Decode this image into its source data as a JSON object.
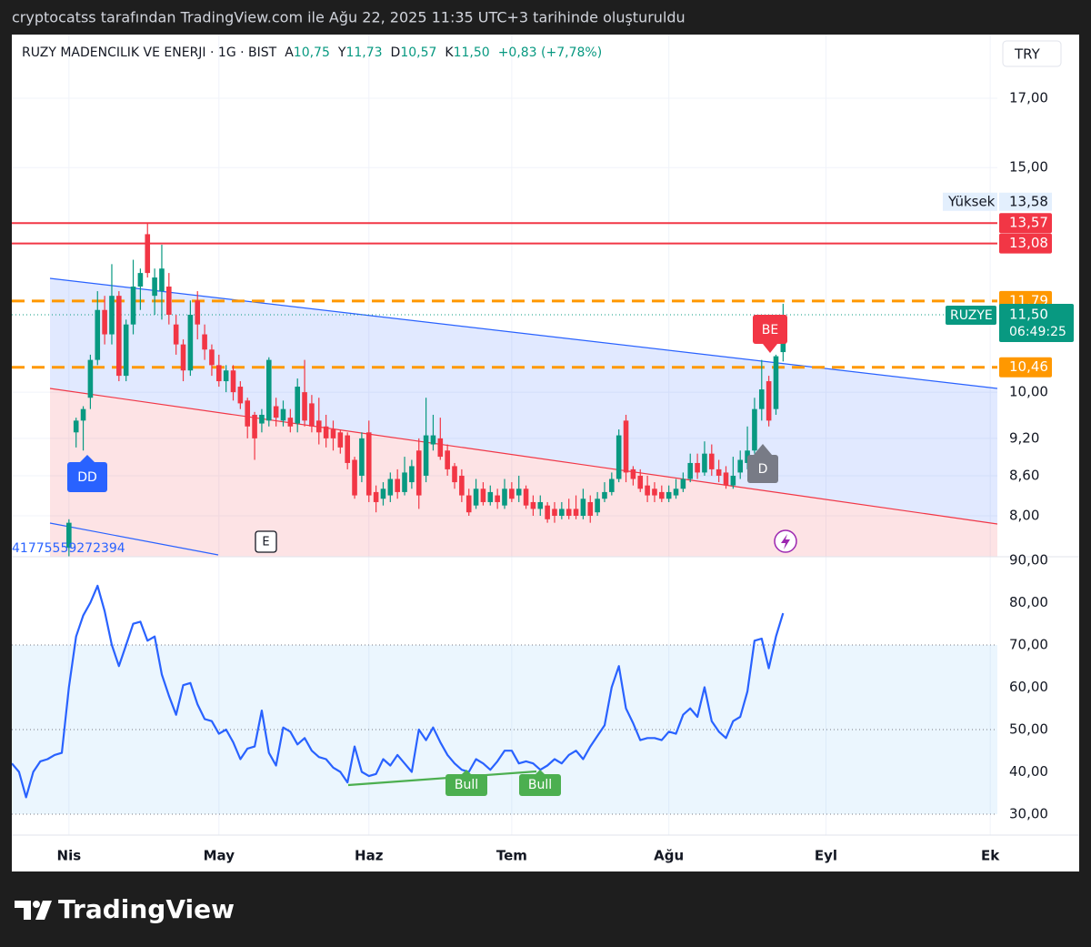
{
  "header": {
    "caption": "cryptocatss tarafından TradingView.com ile Ağu 22, 2025 11:35 UTC+3 tarihinde oluşturuldu"
  },
  "footer": {
    "brand": "TradingView"
  },
  "chart_data": {
    "type": "candlestick",
    "title": "RUZY MADENCILIK VE ENERJI · 1G · BIST",
    "legend": [
      {
        "key": "A",
        "label": "10,75"
      },
      {
        "key": "Y",
        "label": "11,73"
      },
      {
        "key": "D",
        "label": "10,57"
      },
      {
        "key": "K",
        "label": "11,50"
      }
    ],
    "change_label": "+0,83 (+7,78%)",
    "currency": "TRY",
    "up_color": "#089981",
    "down_color": "#f23645",
    "log_scale": true,
    "grid": true,
    "xlim": [
      0,
      138
    ],
    "xticks": [
      {
        "value": 8,
        "label": "Nis"
      },
      {
        "value": 29,
        "label": "May"
      },
      {
        "value": 50,
        "label": "Haz"
      },
      {
        "value": 70,
        "label": "Tem"
      },
      {
        "value": 92,
        "label": "Ağu"
      },
      {
        "value": 114,
        "label": "Eyl"
      },
      {
        "value": 137,
        "label": "Ek"
      }
    ],
    "ylim": [
      7.43,
      19.07
    ],
    "yticks": [
      {
        "value": 17,
        "label": "17,00"
      },
      {
        "value": 15,
        "label": "15,00"
      },
      {
        "value": 10,
        "label": "10,00"
      },
      {
        "value": 9.2,
        "label": "9,20"
      },
      {
        "value": 8.6,
        "label": "8,60"
      },
      {
        "value": 8,
        "label": "8,00"
      }
    ],
    "open": [
      null,
      null,
      null,
      null,
      null,
      null,
      null,
      null,
      7.55,
      9.3,
      9.5,
      9.9,
      10.6,
      11.6,
      11.1,
      11.9,
      10.3,
      11.3,
      12.1,
      13.3,
      11.9,
      12.0,
      12.1,
      11.3,
      10.9,
      10.4,
      11.8,
      11.1,
      10.8,
      10.5,
      10.2,
      10.4,
      10.1,
      9.85,
      9.6,
      9.45,
      9.5,
      9.75,
      9.5,
      9.55,
      9.45,
      10.0,
      9.8,
      9.5,
      9.4,
      9.35,
      9.3,
      9.25,
      8.85,
      8.6,
      9.3,
      8.35,
      8.25,
      8.3,
      8.55,
      8.35,
      8.5,
      9.0,
      8.6,
      9.1,
      9.2,
      9.0,
      8.75,
      8.6,
      8.3,
      8.15,
      8.4,
      8.2,
      8.3,
      8.15,
      8.4,
      8.3,
      8.4,
      8.2,
      8.1,
      8.15,
      8.1,
      8.0,
      8.1,
      8.1,
      8.0,
      8.2,
      8.05,
      8.25,
      8.35,
      8.55,
      9.5,
      8.7,
      8.6,
      8.45,
      8.4,
      8.35,
      8.25,
      8.3,
      8.4,
      8.55,
      8.8,
      8.65,
      8.95,
      8.7,
      8.65,
      8.45,
      8.65,
      8.8,
      9.0,
      9.7,
      10.2,
      9.7,
      10.75
    ],
    "high": [
      null,
      null,
      null,
      null,
      null,
      null,
      null,
      null,
      7.95,
      9.55,
      9.75,
      10.7,
      12.0,
      11.9,
      12.6,
      12.0,
      11.4,
      12.7,
      12.5,
      13.58,
      12.5,
      13.05,
      12.4,
      11.5,
      11.0,
      11.8,
      12.0,
      11.3,
      10.9,
      10.7,
      10.5,
      10.5,
      10.2,
      9.9,
      9.65,
      9.7,
      10.65,
      9.9,
      9.85,
      9.7,
      10.25,
      10.6,
      9.95,
      9.9,
      9.6,
      9.5,
      9.35,
      9.3,
      8.9,
      9.3,
      9.5,
      8.45,
      8.5,
      8.65,
      8.7,
      8.9,
      8.85,
      9.2,
      9.9,
      9.6,
      9.55,
      9.1,
      8.8,
      8.7,
      8.4,
      8.55,
      8.5,
      8.45,
      8.4,
      8.55,
      8.5,
      8.6,
      8.45,
      8.3,
      8.3,
      8.2,
      8.2,
      8.2,
      8.25,
      8.3,
      8.4,
      8.3,
      8.35,
      8.5,
      8.65,
      9.35,
      9.6,
      8.75,
      8.7,
      8.6,
      8.5,
      8.45,
      8.45,
      8.55,
      8.65,
      8.95,
      8.95,
      9.15,
      9.1,
      8.85,
      8.75,
      8.9,
      9.0,
      9.4,
      9.9,
      10.6,
      10.3,
      10.7,
      11.73
    ],
    "low": [
      null,
      null,
      null,
      null,
      null,
      null,
      null,
      null,
      7.4,
      9.05,
      9.0,
      9.7,
      10.5,
      10.9,
      10.9,
      10.2,
      10.2,
      11.1,
      11.6,
      12.3,
      11.5,
      11.4,
      11.3,
      10.7,
      10.2,
      10.3,
      11.0,
      10.6,
      10.3,
      10.1,
      10.0,
      9.85,
      9.7,
      9.2,
      8.85,
      9.3,
      9.4,
      9.4,
      9.4,
      9.3,
      9.3,
      9.4,
      9.3,
      9.1,
      9.05,
      9.0,
      8.95,
      8.7,
      8.25,
      8.5,
      8.2,
      8.05,
      8.15,
      8.2,
      8.25,
      8.3,
      8.4,
      8.1,
      8.5,
      9.0,
      8.85,
      8.6,
      8.4,
      8.2,
      8.0,
      8.1,
      8.15,
      8.15,
      8.1,
      8.1,
      8.2,
      8.2,
      8.1,
      8.0,
      8.0,
      7.9,
      7.9,
      7.95,
      7.95,
      7.95,
      7.95,
      7.9,
      8.0,
      8.2,
      8.3,
      8.5,
      8.5,
      8.45,
      8.35,
      8.2,
      8.2,
      8.2,
      8.2,
      8.25,
      8.35,
      8.5,
      8.55,
      8.6,
      8.6,
      8.5,
      8.4,
      8.4,
      8.55,
      8.7,
      8.95,
      9.5,
      9.4,
      9.6,
      10.57
    ],
    "close": [
      null,
      null,
      null,
      null,
      null,
      null,
      null,
      null,
      7.9,
      9.5,
      9.7,
      10.6,
      11.6,
      11.1,
      11.9,
      10.3,
      11.3,
      12.1,
      12.4,
      12.4,
      12.3,
      12.5,
      11.5,
      10.9,
      10.4,
      11.5,
      11.3,
      10.8,
      10.5,
      10.2,
      10.4,
      10.0,
      9.8,
      9.4,
      9.2,
      9.6,
      10.6,
      9.55,
      9.7,
      9.4,
      10.1,
      9.5,
      9.4,
      9.3,
      9.2,
      9.2,
      9.05,
      8.8,
      8.3,
      9.2,
      8.3,
      8.2,
      8.4,
      8.55,
      8.35,
      8.65,
      8.75,
      8.3,
      9.25,
      9.25,
      8.9,
      8.7,
      8.5,
      8.3,
      8.05,
      8.4,
      8.2,
      8.35,
      8.2,
      8.4,
      8.25,
      8.4,
      8.15,
      8.1,
      8.2,
      7.95,
      8.0,
      8.1,
      8.0,
      8.0,
      8.25,
      8.0,
      8.25,
      8.35,
      8.55,
      9.25,
      8.65,
      8.55,
      8.4,
      8.3,
      8.3,
      8.25,
      8.35,
      8.4,
      8.55,
      8.8,
      8.65,
      8.95,
      8.7,
      8.6,
      8.45,
      8.6,
      8.85,
      9.0,
      9.7,
      10.05,
      9.5,
      10.67,
      11.5
    ],
    "price_lines": [
      {
        "value": 13.57,
        "label": "13,57",
        "color": "#f23645",
        "style": "solid"
      },
      {
        "value": 13.08,
        "label": "13,08",
        "color": "#f23645",
        "style": "solid"
      },
      {
        "value": 11.79,
        "label": "11,79",
        "color": "#ff9800",
        "style": "dashed"
      },
      {
        "value": 10.46,
        "label": "10,46",
        "color": "#ff9800",
        "style": "dashed"
      }
    ],
    "high_marker": {
      "name": "Yüksek",
      "value": 13.58,
      "label": "13,58"
    },
    "last_price": {
      "name": "RUZYE",
      "value": 11.5,
      "label": "11,50",
      "countdown": "06:49:25",
      "color": "#089981"
    },
    "annotations": [
      "DD",
      "BE",
      "D",
      "E",
      "41775559272394"
    ],
    "rsi": {
      "color": "#2962ff",
      "ylim": [
        25.05,
        90.86
      ],
      "yticks": [
        {
          "value": 90,
          "label": "90,00"
        },
        {
          "value": 80,
          "label": "80,00"
        },
        {
          "value": 70,
          "label": "70,00"
        },
        {
          "value": 60,
          "label": "60,00"
        },
        {
          "value": 50,
          "label": "50,00"
        },
        {
          "value": 40,
          "label": "40,00"
        },
        {
          "value": 30,
          "label": "30,00"
        }
      ],
      "bands": [
        70,
        50,
        30
      ],
      "divergence_labels": [
        "Bull",
        "Bull"
      ],
      "values": [
        42,
        40,
        34,
        40,
        42.5,
        43,
        44,
        44.5,
        60,
        72,
        77,
        80,
        84,
        78,
        70,
        65,
        70,
        75,
        75.5,
        71,
        72,
        63,
        58,
        53.5,
        60.5,
        61,
        56,
        52.5,
        52,
        49,
        50,
        47,
        43,
        45.5,
        46,
        54.5,
        44.5,
        41.5,
        50.5,
        49.5,
        46.5,
        48,
        45,
        43.5,
        43,
        41,
        40,
        37.5,
        46,
        40,
        39,
        39.5,
        43,
        41.5,
        44,
        42,
        40,
        50,
        47.5,
        50.5,
        47,
        44,
        42,
        40.5,
        40,
        43,
        42,
        40.5,
        42.5,
        45,
        45,
        42,
        42.5,
        42,
        40.5,
        41.5,
        43,
        42,
        44,
        45,
        43,
        46,
        48.5,
        51,
        60,
        65,
        55,
        51.5,
        47.5,
        48,
        48,
        47.5,
        49.5,
        49,
        53.5,
        55,
        53,
        60,
        52,
        49.5,
        48,
        52,
        53,
        59,
        71,
        71.5,
        64.5,
        72,
        77.5
      ]
    }
  }
}
